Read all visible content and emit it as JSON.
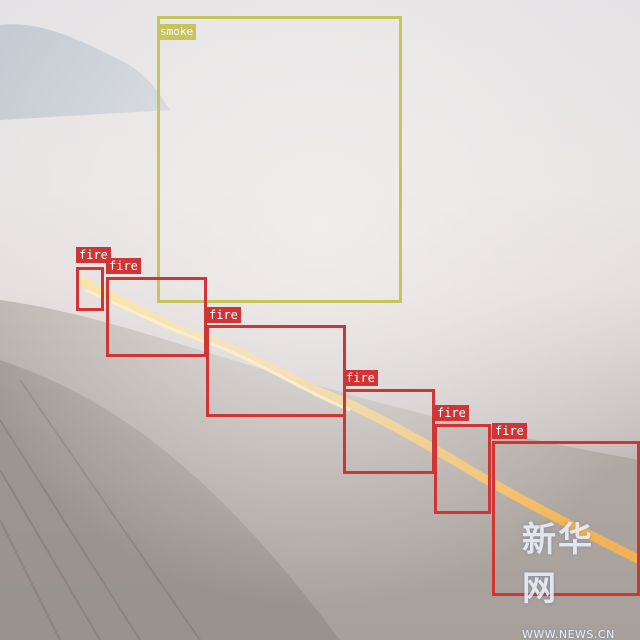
{
  "detections": [
    {
      "label": "smoke",
      "color": "#c6c45c"
    },
    {
      "label": "fire",
      "color": "#cf3535"
    },
    {
      "label": "fire",
      "color": "#cf3535"
    },
    {
      "label": "fire",
      "color": "#cf3535"
    },
    {
      "label": "fire",
      "color": "#cf3535"
    },
    {
      "label": "fire",
      "color": "#cf3535"
    },
    {
      "label": "fire",
      "color": "#cf3535"
    }
  ],
  "watermark": {
    "logo_text": "新华网",
    "url_text": "WWW.NEWS.CN"
  }
}
